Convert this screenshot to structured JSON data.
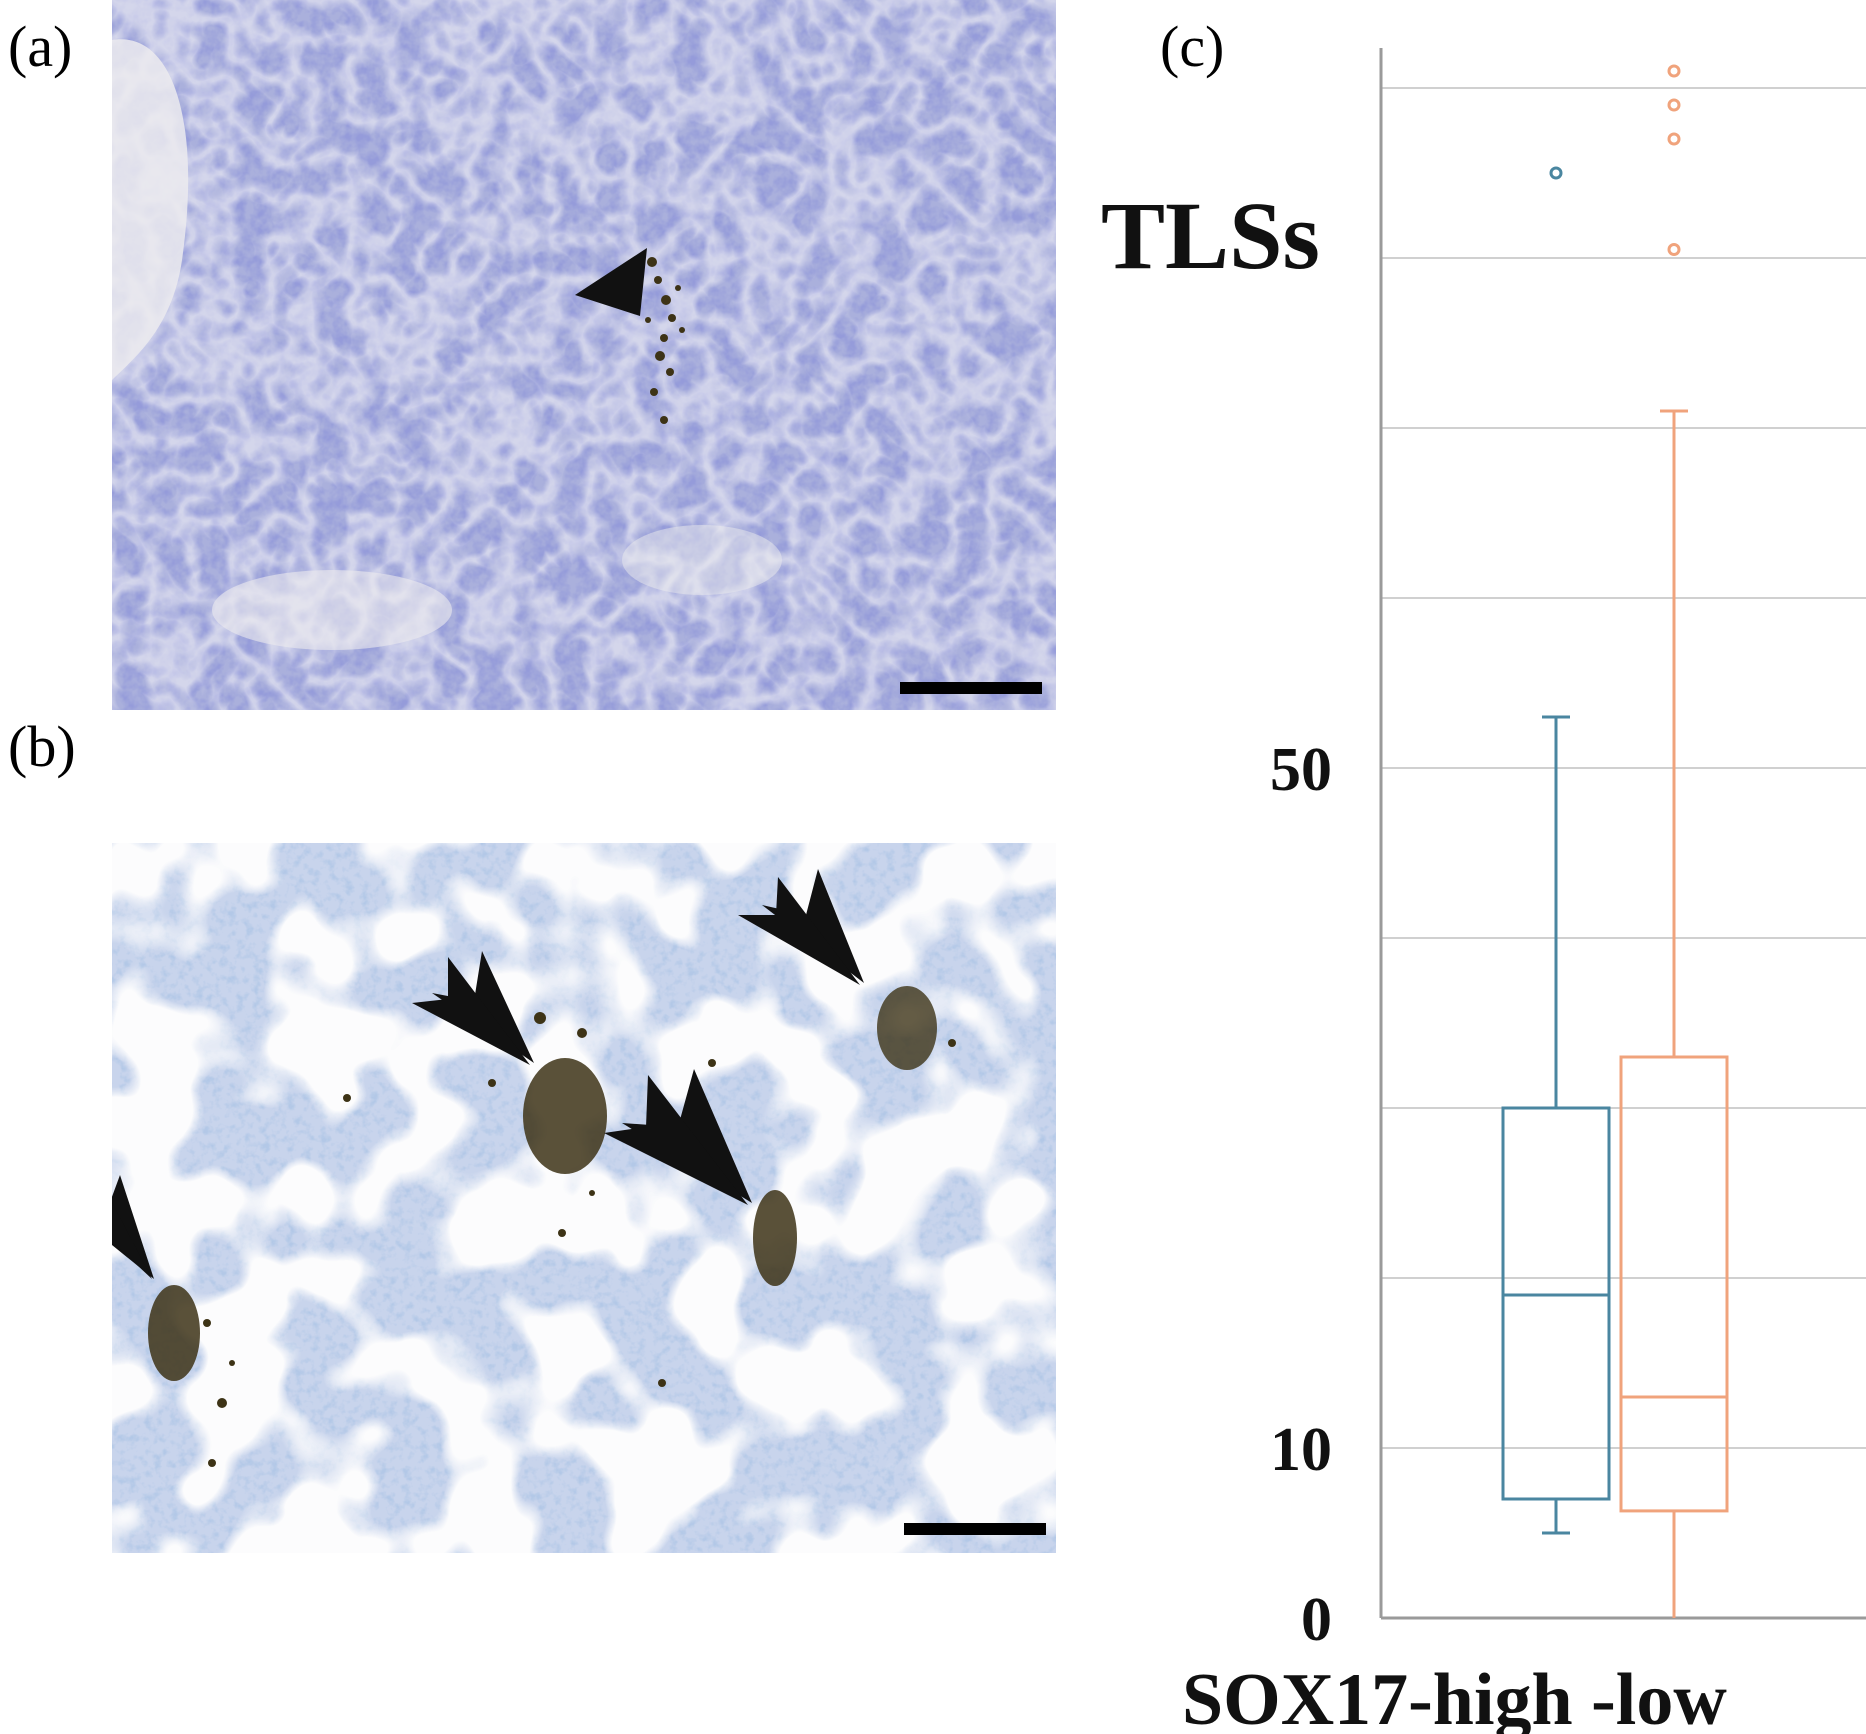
{
  "panels": {
    "a": {
      "label": "(a)"
    },
    "b": {
      "label": "(b)"
    },
    "c": {
      "label": "(c)"
    }
  },
  "colors": {
    "series_high": "#4a86a0",
    "series_low": "#f0a37c",
    "grid": "#d0d0d0",
    "axis": "#9a9a9a",
    "tissue_a": "#9a9fd2",
    "tissue_b": "#b9c8e6",
    "stain": "#3d3316"
  },
  "chart_data": {
    "type": "box",
    "title": "",
    "ylabel": "TLSs",
    "xlabel": "SOX17-high -low",
    "ylim": [
      -2,
      93
    ],
    "y_ticks": [
      0,
      10,
      50
    ],
    "gridlines": [
      0,
      10,
      20,
      30,
      40,
      50,
      60,
      70,
      80,
      90
    ],
    "series": [
      {
        "name": "SOX17-high",
        "color": "#4a86a0",
        "min": 5,
        "q1": 7,
        "median": 19,
        "q3": 30,
        "max": 53,
        "outliers": [
          85
        ]
      },
      {
        "name": "SOX17-low",
        "color": "#f0a37c",
        "min": 0,
        "q1": 6.3,
        "median": 13,
        "q3": 33,
        "max": 71,
        "outliers": [
          80.5,
          87,
          89,
          91
        ]
      }
    ]
  }
}
